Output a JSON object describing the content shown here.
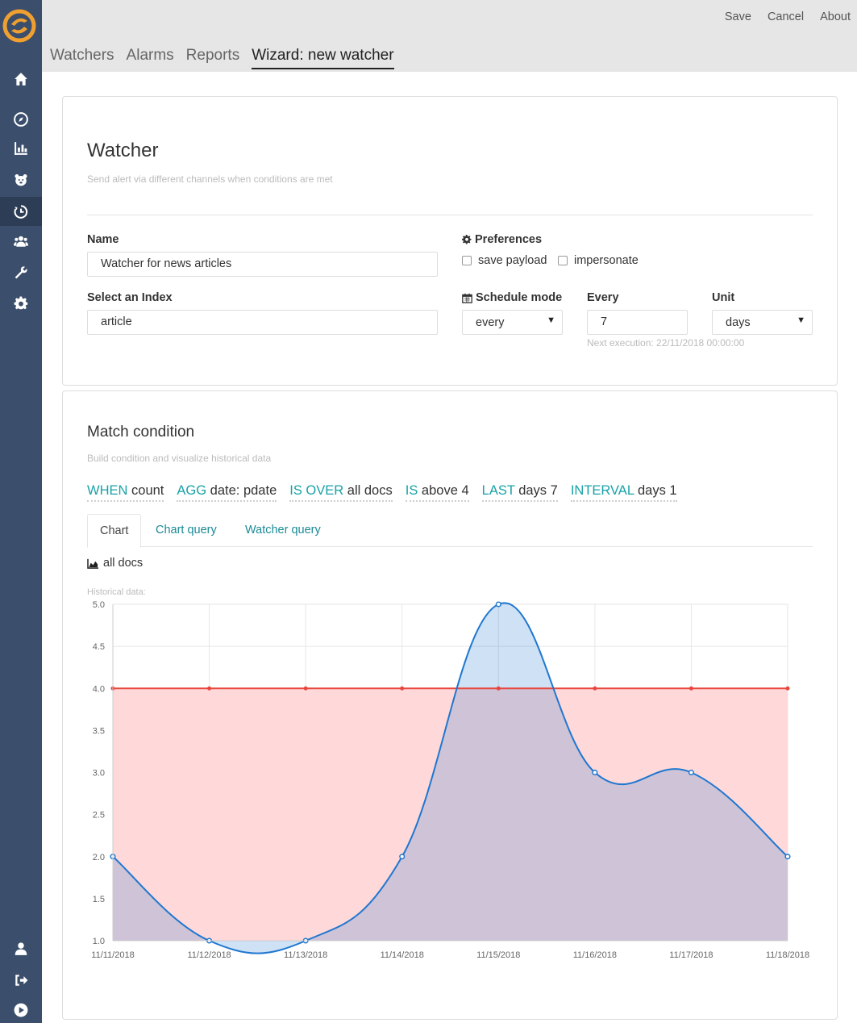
{
  "app": {
    "top_actions": [
      "Save",
      "Cancel",
      "About"
    ],
    "nav_tabs": [
      "Watchers",
      "Alarms",
      "Reports",
      "Wizard: new watcher"
    ],
    "active_tab": "Wizard: new watcher"
  },
  "sidebar": {
    "items": [
      {
        "icon": "home-icon"
      },
      {
        "icon": "compass-icon"
      },
      {
        "icon": "bar-chart-icon"
      },
      {
        "icon": "bear-icon"
      },
      {
        "icon": "timer-icon",
        "active": true
      },
      {
        "icon": "users-icon"
      },
      {
        "icon": "wrench-icon"
      },
      {
        "icon": "gear-icon"
      },
      {
        "icon": "user-icon"
      },
      {
        "icon": "sign-out-icon"
      },
      {
        "icon": "play-icon"
      }
    ]
  },
  "watcher": {
    "title": "Watcher",
    "subtitle": "Send alert via different channels when conditions are met",
    "name_label": "Name",
    "name_value": "Watcher for news articles",
    "index_label": "Select an Index",
    "index_value": "article",
    "preferences_label": "Preferences",
    "save_payload_label": "save payload",
    "impersonate_label": "impersonate",
    "schedule_mode_label": "Schedule mode",
    "schedule_mode_value": "every",
    "every_label": "Every",
    "every_value": "7",
    "unit_label": "Unit",
    "unit_value": "days",
    "next_execution": "Next execution: 22/11/2018 00:00:00"
  },
  "match": {
    "title": "Match condition",
    "subtitle": "Build condition and visualize historical data",
    "conditions": [
      {
        "keyword": "WHEN",
        "value": "count"
      },
      {
        "keyword": "AGG",
        "value": "date: pdate"
      },
      {
        "keyword": "IS OVER",
        "value": "all docs"
      },
      {
        "keyword": "IS",
        "value": "above 4"
      },
      {
        "keyword": "LAST",
        "value": "days 7"
      },
      {
        "keyword": "INTERVAL",
        "value": "days 1"
      }
    ],
    "tabs": [
      "Chart",
      "Chart query",
      "Watcher query"
    ],
    "active_tab": "Chart",
    "series_label": "all docs",
    "historical_label": "Historical data:"
  },
  "colors": {
    "accent": "#17a2a7",
    "series": "#1f77d0",
    "series_fill": "#c9def3",
    "threshold": "#e8463d",
    "threshold_fill": "#ffd9d9",
    "overlap_fill": "#ccc5d9",
    "sidebar": "#3b4e6b"
  },
  "chart_data": {
    "type": "area",
    "x": [
      "11/11/2018",
      "11/12/2018",
      "11/13/2018",
      "11/14/2018",
      "11/15/2018",
      "11/16/2018",
      "11/17/2018",
      "11/18/2018"
    ],
    "series": [
      {
        "values": [
          2,
          1,
          1,
          2,
          5,
          3,
          3,
          2
        ]
      },
      {
        "values": [
          4,
          4,
          4,
          4,
          4,
          4,
          4,
          4
        ]
      }
    ],
    "ylim": [
      1,
      5
    ],
    "yticks": [
      "1.0",
      "1.5",
      "2.0",
      "2.5",
      "3.0",
      "3.5",
      "4.0",
      "4.5",
      "5.0"
    ],
    "grid": true
  }
}
